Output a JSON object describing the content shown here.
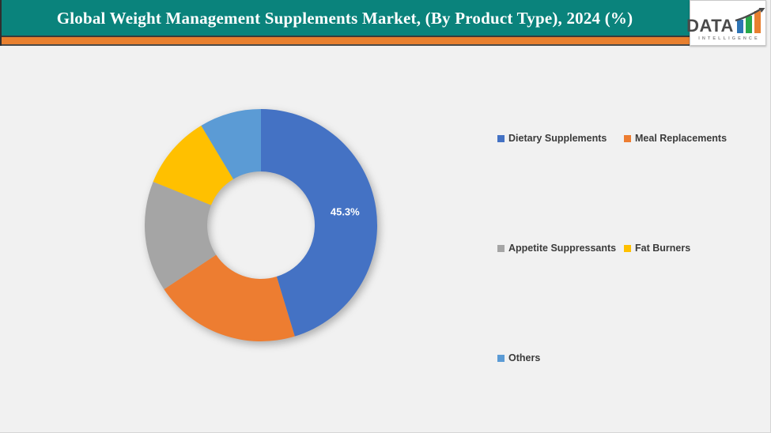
{
  "header": {
    "title": "Global Weight Management Supplements Market, (By Product Type), 2024 (%)",
    "band_color": "#0A837C",
    "accent_bar_color": "#E8802F",
    "logo": {
      "name": "DATA",
      "tagline": "INTELLIGENCE",
      "bar_colors": [
        "#2E75B6",
        "#28A84A",
        "#E8802F"
      ],
      "arrow_color": "#4A4A4A"
    }
  },
  "chart_data": {
    "type": "pie",
    "subtype": "donut",
    "title": "Global Weight Management Supplements Market, (By Product Type), 2024 (%)",
    "unit": "%",
    "categories": [
      "Dietary Supplements",
      "Meal Replacements",
      "Appetite Suppressants",
      "Fat Burners",
      "Others"
    ],
    "values": [
      45.3,
      20.4,
      15.4,
      10.3,
      8.6
    ],
    "colors": [
      "#4472C4",
      "#ED7D31",
      "#A5A5A5",
      "#FFC000",
      "#5B9BD5"
    ],
    "data_labels": [
      "45.3%",
      "",
      "",
      "",
      ""
    ],
    "start_angle_deg": 0,
    "direction": "clockwise",
    "inner_radius_ratio": 0.46,
    "legend_position": "right",
    "grid": false
  }
}
